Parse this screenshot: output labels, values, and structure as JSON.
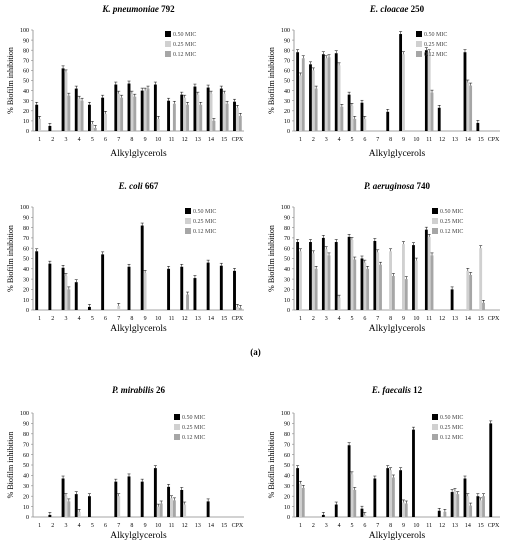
{
  "figure_label": "(a)",
  "chart_data": [
    {
      "type": "bar",
      "title": "K. pneumoniae 792",
      "title_italic": "K. pneumoniae",
      "title_rest": " 792",
      "xlabel": "Alkylglycerols",
      "ylabel": "% Biofilm inhibition",
      "ylim": [
        0,
        100
      ],
      "yticks": [
        0,
        10,
        20,
        30,
        40,
        50,
        60,
        70,
        80,
        90,
        100
      ],
      "categories": [
        "1",
        "2",
        "3",
        "4",
        "5",
        "6",
        "7",
        "8",
        "9",
        "10",
        "11",
        "12",
        "13",
        "14",
        "15",
        "CPX"
      ],
      "legend_position": "top-right",
      "series": [
        {
          "name": "0.50 MIC",
          "color": "#000000",
          "values": [
            26,
            5,
            62,
            42,
            26,
            33,
            46,
            47,
            40,
            46,
            30,
            36,
            44,
            43,
            42,
            29
          ]
        },
        {
          "name": "0.25 MIC",
          "color": "#d0d0d0",
          "values": [
            12,
            0,
            58,
            32,
            7,
            17,
            37,
            37,
            40,
            12,
            0,
            33,
            36,
            37,
            37,
            23
          ]
        },
        {
          "name": "0.12 MIC",
          "color": "#a6a6a6",
          "values": [
            0,
            0,
            35,
            30,
            3,
            0,
            33,
            34,
            42,
            0,
            27,
            26,
            26,
            10,
            27,
            15
          ]
        }
      ]
    },
    {
      "type": "bar",
      "title": "E. cloacae 250",
      "title_italic": "E. cloacae",
      "title_rest": " 250",
      "xlabel": "Alkylglycerols",
      "ylabel": "% Biofilm inhibition",
      "ylim": [
        0,
        100
      ],
      "yticks": [
        0,
        10,
        20,
        30,
        40,
        50,
        60,
        70,
        80,
        90,
        100
      ],
      "categories": [
        "1",
        "2",
        "3",
        "4",
        "5",
        "6",
        "7",
        "8",
        "9",
        "10",
        "11",
        "12",
        "13",
        "14",
        "15",
        "CPX"
      ],
      "legend_position": "top-right",
      "series": [
        {
          "name": "0.50 MIC",
          "color": "#000000",
          "values": [
            78,
            66,
            76,
            77,
            36,
            28,
            0,
            19,
            96,
            0,
            80,
            23,
            0,
            78,
            8,
            0
          ]
        },
        {
          "name": "0.25 MIC",
          "color": "#d0d0d0",
          "values": [
            55,
            60,
            72,
            65,
            25,
            12,
            0,
            0,
            76,
            0,
            78,
            0,
            0,
            48,
            0,
            0
          ]
        },
        {
          "name": "0.12 MIC",
          "color": "#a6a6a6",
          "values": [
            72,
            42,
            73,
            24,
            12,
            0,
            0,
            0,
            0,
            0,
            38,
            0,
            0,
            45,
            0,
            0
          ]
        }
      ]
    },
    {
      "type": "bar",
      "title": "E. coli 667",
      "title_italic": "E. coli",
      "title_rest": " 667",
      "xlabel": "Alkylglycerols",
      "ylabel": "% Biofilm inhibition",
      "ylim": [
        0,
        100
      ],
      "yticks": [
        0,
        10,
        20,
        30,
        40,
        50,
        60,
        70,
        80,
        90,
        100
      ],
      "categories": [
        "1",
        "2",
        "3",
        "4",
        "5",
        "6",
        "7",
        "8",
        "9",
        "10",
        "11",
        "12",
        "13",
        "14",
        "15",
        "CPX"
      ],
      "legend_position": "top-right",
      "series": [
        {
          "name": "0.50 MIC",
          "color": "#000000",
          "values": [
            57,
            45,
            41,
            27,
            3,
            54,
            0,
            42,
            82,
            0,
            40,
            42,
            31,
            46,
            43,
            38
          ]
        },
        {
          "name": "0.25 MIC",
          "color": "#d0d0d0",
          "values": [
            0,
            0,
            33,
            0,
            0,
            0,
            4,
            0,
            36,
            0,
            0,
            0,
            0,
            0,
            0,
            3
          ]
        },
        {
          "name": "0.12 MIC",
          "color": "#a6a6a6",
          "values": [
            0,
            0,
            20,
            0,
            0,
            0,
            0,
            0,
            0,
            0,
            0,
            15,
            0,
            0,
            0,
            2
          ]
        }
      ]
    },
    {
      "type": "bar",
      "title": "P. aeruginosa 740",
      "title_italic": "P. aeruginosa",
      "title_rest": " 740",
      "xlabel": "Alkylglycerols",
      "ylabel": "% Biofilm inhibition",
      "ylim": [
        0,
        100
      ],
      "yticks": [
        0,
        10,
        20,
        30,
        40,
        50,
        60,
        70,
        80,
        90,
        100
      ],
      "categories": [
        "1",
        "2",
        "3",
        "4",
        "5",
        "6",
        "7",
        "8",
        "9",
        "10",
        "11",
        "12",
        "13",
        "14",
        "15",
        "CPX"
      ],
      "legend_position": "top-right",
      "series": [
        {
          "name": "0.50 MIC",
          "color": "#000000",
          "values": [
            66,
            66,
            70,
            66,
            71,
            50,
            67,
            0,
            0,
            63,
            78,
            0,
            20,
            0,
            0,
            0
          ]
        },
        {
          "name": "0.25 MIC",
          "color": "#d0d0d0",
          "values": [
            57,
            55,
            59,
            12,
            68,
            46,
            56,
            57,
            64,
            48,
            71,
            0,
            0,
            38,
            60,
            0
          ]
        },
        {
          "name": "0.12 MIC",
          "color": "#a6a6a6",
          "values": [
            0,
            40,
            53,
            0,
            49,
            40,
            44,
            33,
            30,
            0,
            53,
            0,
            0,
            34,
            7,
            0
          ]
        }
      ]
    },
    {
      "type": "bar",
      "title": "P. mirabilis 26",
      "title_italic": "P. mirabilis",
      "title_rest": " 26",
      "xlabel": "Alkylglycerols",
      "ylabel": "% Biofilm inhibition",
      "ylim": [
        0,
        100
      ],
      "yticks": [
        0,
        10,
        20,
        30,
        40,
        50,
        60,
        70,
        80,
        90,
        100
      ],
      "categories": [
        "1",
        "2",
        "3",
        "4",
        "5",
        "6",
        "7",
        "8",
        "9",
        "10",
        "11",
        "12",
        "13",
        "14",
        "15",
        "CPX"
      ],
      "legend_position": "top-right",
      "series": [
        {
          "name": "0.50 MIC",
          "color": "#000000",
          "values": [
            0,
            2,
            37,
            22,
            20,
            0,
            34,
            39,
            34,
            47,
            29,
            26,
            0,
            15,
            0,
            0
          ]
        },
        {
          "name": "0.25 MIC",
          "color": "#d0d0d0",
          "values": [
            0,
            0,
            20,
            5,
            0,
            0,
            20,
            0,
            0,
            10,
            18,
            12,
            0,
            0,
            0,
            0
          ]
        },
        {
          "name": "0.12 MIC",
          "color": "#a6a6a6",
          "values": [
            0,
            0,
            15,
            0,
            0,
            0,
            0,
            0,
            0,
            13,
            16,
            0,
            0,
            0,
            0,
            0
          ]
        }
      ]
    },
    {
      "type": "bar",
      "title": "E. faecalis 12",
      "title_italic": "E. faecalis",
      "title_rest": " 12",
      "xlabel": "Alkylglycerols",
      "ylabel": "% Biofilm inhibition",
      "ylim": [
        0,
        100
      ],
      "yticks": [
        0,
        10,
        20,
        30,
        40,
        50,
        60,
        70,
        80,
        90,
        100
      ],
      "categories": [
        "1",
        "2",
        "3",
        "4",
        "5",
        "6",
        "7",
        "8",
        "9",
        "10",
        "11",
        "12",
        "13",
        "14",
        "15",
        "CPX"
      ],
      "legend_position": "top-right",
      "series": [
        {
          "name": "0.50 MIC",
          "color": "#000000",
          "values": [
            47,
            0,
            2,
            12,
            69,
            8,
            37,
            47,
            45,
            84,
            0,
            6,
            24,
            37,
            20,
            90
          ]
        },
        {
          "name": "0.25 MIC",
          "color": "#d0d0d0",
          "values": [
            32,
            0,
            0,
            0,
            41,
            2,
            0,
            45,
            14,
            0,
            0,
            0,
            25,
            20,
            16,
            0
          ]
        },
        {
          "name": "0.12 MIC",
          "color": "#a6a6a6",
          "values": [
            28,
            0,
            0,
            0,
            26,
            0,
            0,
            38,
            13,
            0,
            0,
            5,
            22,
            11,
            20,
            0
          ]
        }
      ]
    }
  ]
}
